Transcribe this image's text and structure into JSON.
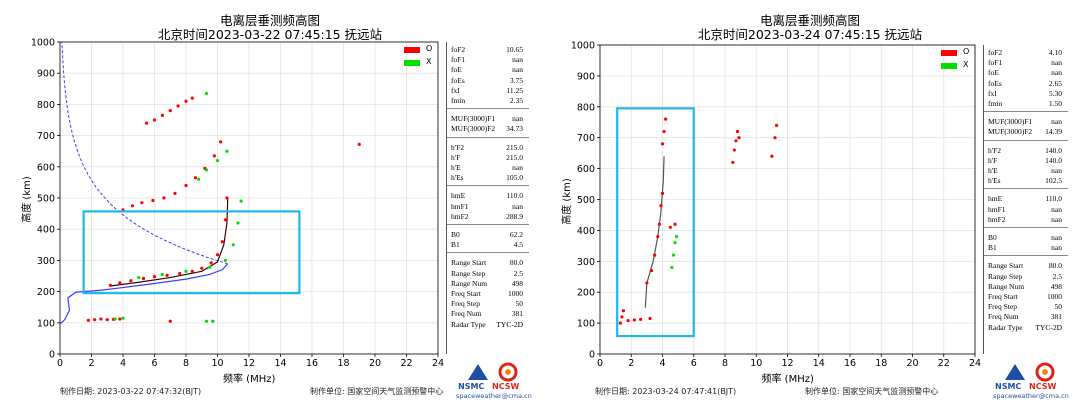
{
  "left": {
    "title_line1": "电离层垂测频高图",
    "title_line2": "北京时间2023-03-22 07:45:15  抚远站",
    "ylabel": "高度 (km)",
    "xlabel": "频率 (MHz)",
    "footer_date": "制作日期: 2023-03-22 07:47:32(BJT)",
    "footer_unit": "制作单位: 国家空间天气监测预警中心",
    "legend": [
      {
        "label": "O",
        "color": "#ff0000"
      },
      {
        "label": "X",
        "color": "#00e000"
      }
    ],
    "params": [
      [
        [
          "foF2",
          "10.65"
        ],
        [
          "foF1",
          "nan"
        ],
        [
          "foE",
          "nan"
        ],
        [
          "foEs",
          "3.75"
        ],
        [
          "fxI",
          "11.25"
        ],
        [
          "fmin",
          "2.35"
        ]
      ],
      [
        [
          "MUF(3000)F1",
          "nan"
        ],
        [
          "MUF(3000)F2",
          "34.73"
        ]
      ],
      [
        [
          "h'F2",
          "215.0"
        ],
        [
          "h'F",
          "215.0"
        ],
        [
          "h'E",
          "nan"
        ],
        [
          "h'Es",
          "105.0"
        ]
      ],
      [
        [
          "hmE",
          "110.0"
        ],
        [
          "hmF1",
          "nan"
        ],
        [
          "hmF2",
          "288.9"
        ]
      ],
      [
        [
          "B0",
          "62.2"
        ],
        [
          "B1",
          "4.5"
        ]
      ],
      [
        [
          "Range Start",
          "80.0"
        ],
        [
          "Range Step",
          "2.5"
        ],
        [
          "Range Num",
          "498"
        ],
        [
          "Freq Start",
          "1000"
        ],
        [
          "Freq Step",
          "50"
        ],
        [
          "Freq Num",
          "381"
        ],
        [
          "Radar Type",
          "TYC-2D"
        ]
      ]
    ]
  },
  "right": {
    "title_line1": "电离层垂测频高图",
    "title_line2": "北京时间2023-03-24 07:45:15  抚远站",
    "ylabel": "高度 (km)",
    "xlabel": "频率 (MHz)",
    "footer_date": "制作日期: 2023-03-24 07:47:41(BJT)",
    "footer_unit": "制作单位: 国家空间天气监测预警中心",
    "legend": [
      {
        "label": "O",
        "color": "#ff0000"
      },
      {
        "label": "X",
        "color": "#00e000"
      }
    ],
    "params": [
      [
        [
          "foF2",
          "4.10"
        ],
        [
          "foF1",
          "nan"
        ],
        [
          "foE",
          "nan"
        ],
        [
          "foEs",
          "2.65"
        ],
        [
          "fxI",
          "5.30"
        ],
        [
          "fmin",
          "1.50"
        ]
      ],
      [
        [
          "MUF(3000)F1",
          "nan"
        ],
        [
          "MUF(3000)F2",
          "14.39"
        ]
      ],
      [
        [
          "h'F2",
          "140.0"
        ],
        [
          "h'F",
          "140.0"
        ],
        [
          "h'E",
          "nan"
        ],
        [
          "h'Es",
          "102.5"
        ]
      ],
      [
        [
          "hmE",
          "110.0"
        ],
        [
          "hmF1",
          "nan"
        ],
        [
          "hmF2",
          "nan"
        ]
      ],
      [
        [
          "B0",
          "nan"
        ],
        [
          "B1",
          "nan"
        ]
      ],
      [
        [
          "Range Start",
          "80.0"
        ],
        [
          "Range Step",
          "2.5"
        ],
        [
          "Range Num",
          "498"
        ],
        [
          "Freq Start",
          "1000"
        ],
        [
          "Freq Step",
          "50"
        ],
        [
          "Freq Num",
          "381"
        ],
        [
          "Radar Type",
          "TYC-2D"
        ]
      ]
    ]
  },
  "logo": {
    "nsmc": "NSMC",
    "ncsw": "NCSW",
    "url": "spaceweather@cma.cn"
  },
  "colors": {
    "o_trace": "#ff0000",
    "x_trace": "#00e000",
    "profile": "#3b3bff",
    "highlight": "#1fb6e8",
    "fit": "#555555"
  },
  "chart_data": [
    {
      "type": "scatter",
      "title": "电离层垂测频高图 北京时间2023-03-22 07:45:15 抚远站",
      "xlabel": "频率 (MHz)",
      "ylabel": "高度 (km)",
      "xlim": [
        0,
        24
      ],
      "ylim": [
        0,
        1000
      ],
      "xticks": [
        0,
        2,
        4,
        6,
        8,
        10,
        12,
        14,
        16,
        18,
        20,
        22,
        24
      ],
      "yticks": [
        0,
        100,
        200,
        300,
        400,
        500,
        600,
        700,
        800,
        900,
        1000
      ],
      "grid": true,
      "legend_position": "top-right",
      "series": [
        {
          "name": "O",
          "points": [
            [
              1.8,
              108
            ],
            [
              2.2,
              110
            ],
            [
              2.6,
              112
            ],
            [
              3.0,
              110
            ],
            [
              3.4,
              111
            ],
            [
              3.8,
              112
            ],
            [
              3.2,
              220
            ],
            [
              3.8,
              228
            ],
            [
              4.5,
              235
            ],
            [
              5.3,
              242
            ],
            [
              6.0,
              248
            ],
            [
              6.8,
              252
            ],
            [
              7.6,
              258
            ],
            [
              8.4,
              265
            ],
            [
              9.0,
              275
            ],
            [
              9.6,
              292
            ],
            [
              10.0,
              318
            ],
            [
              10.3,
              360
            ],
            [
              10.5,
              430
            ],
            [
              10.6,
              500
            ],
            [
              4.0,
              462
            ],
            [
              4.6,
              475
            ],
            [
              5.2,
              485
            ],
            [
              5.9,
              492
            ],
            [
              6.6,
              500
            ],
            [
              7.3,
              515
            ],
            [
              8.0,
              540
            ],
            [
              8.6,
              565
            ],
            [
              9.2,
              595
            ],
            [
              9.8,
              635
            ],
            [
              10.2,
              680
            ],
            [
              5.5,
              740
            ],
            [
              6.0,
              750
            ],
            [
              6.5,
              765
            ],
            [
              7.0,
              780
            ],
            [
              7.5,
              795
            ],
            [
              8.0,
              810
            ],
            [
              8.4,
              820
            ],
            [
              19.0,
              672
            ],
            [
              7.0,
              105
            ]
          ]
        },
        {
          "name": "X",
          "points": [
            [
              3.5,
              112
            ],
            [
              4.0,
              115
            ],
            [
              9.3,
              105
            ],
            [
              9.7,
              105
            ],
            [
              5.0,
              245
            ],
            [
              6.5,
              255
            ],
            [
              8.0,
              265
            ],
            [
              9.5,
              278
            ],
            [
              10.5,
              300
            ],
            [
              11.0,
              350
            ],
            [
              11.3,
              420
            ],
            [
              11.5,
              490
            ],
            [
              8.8,
              560
            ],
            [
              9.3,
              590
            ],
            [
              10.0,
              620
            ],
            [
              10.6,
              650
            ],
            [
              9.3,
              835
            ]
          ]
        }
      ],
      "annotations": [
        "fitted trace",
        "profile"
      ]
    },
    {
      "type": "scatter",
      "title": "电离层垂测频高图 北京时间2023-03-24 07:45:15 抚远站",
      "xlabel": "频率 (MHz)",
      "ylabel": "高度 (km)",
      "xlim": [
        0,
        24
      ],
      "ylim": [
        0,
        1000
      ],
      "xticks": [
        0,
        2,
        4,
        6,
        8,
        10,
        12,
        14,
        16,
        18,
        20,
        22,
        24
      ],
      "yticks": [
        0,
        100,
        200,
        300,
        400,
        500,
        600,
        700,
        800,
        900,
        1000
      ],
      "grid": true,
      "legend_position": "top-right",
      "series": [
        {
          "name": "O",
          "points": [
            [
              1.3,
              100
            ],
            [
              1.4,
              120
            ],
            [
              1.5,
              140
            ],
            [
              1.8,
              108
            ],
            [
              2.2,
              110
            ],
            [
              2.6,
              112
            ],
            [
              3.2,
              115
            ],
            [
              3.0,
              230
            ],
            [
              3.3,
              270
            ],
            [
              3.5,
              320
            ],
            [
              3.7,
              380
            ],
            [
              3.8,
              420
            ],
            [
              3.9,
              480
            ],
            [
              4.0,
              520
            ],
            [
              4.0,
              680
            ],
            [
              4.1,
              720
            ],
            [
              4.2,
              760
            ],
            [
              4.5,
              410
            ],
            [
              4.8,
              420
            ],
            [
              8.5,
              620
            ],
            [
              8.6,
              660
            ],
            [
              8.7,
              690
            ],
            [
              8.8,
              720
            ],
            [
              8.9,
              700
            ],
            [
              11.0,
              640
            ],
            [
              11.2,
              700
            ],
            [
              11.3,
              740
            ]
          ]
        },
        {
          "name": "X",
          "points": [
            [
              4.6,
              280
            ],
            [
              4.7,
              320
            ],
            [
              4.8,
              360
            ],
            [
              4.9,
              380
            ]
          ]
        }
      ],
      "annotations": [
        "fitted trace"
      ]
    }
  ]
}
